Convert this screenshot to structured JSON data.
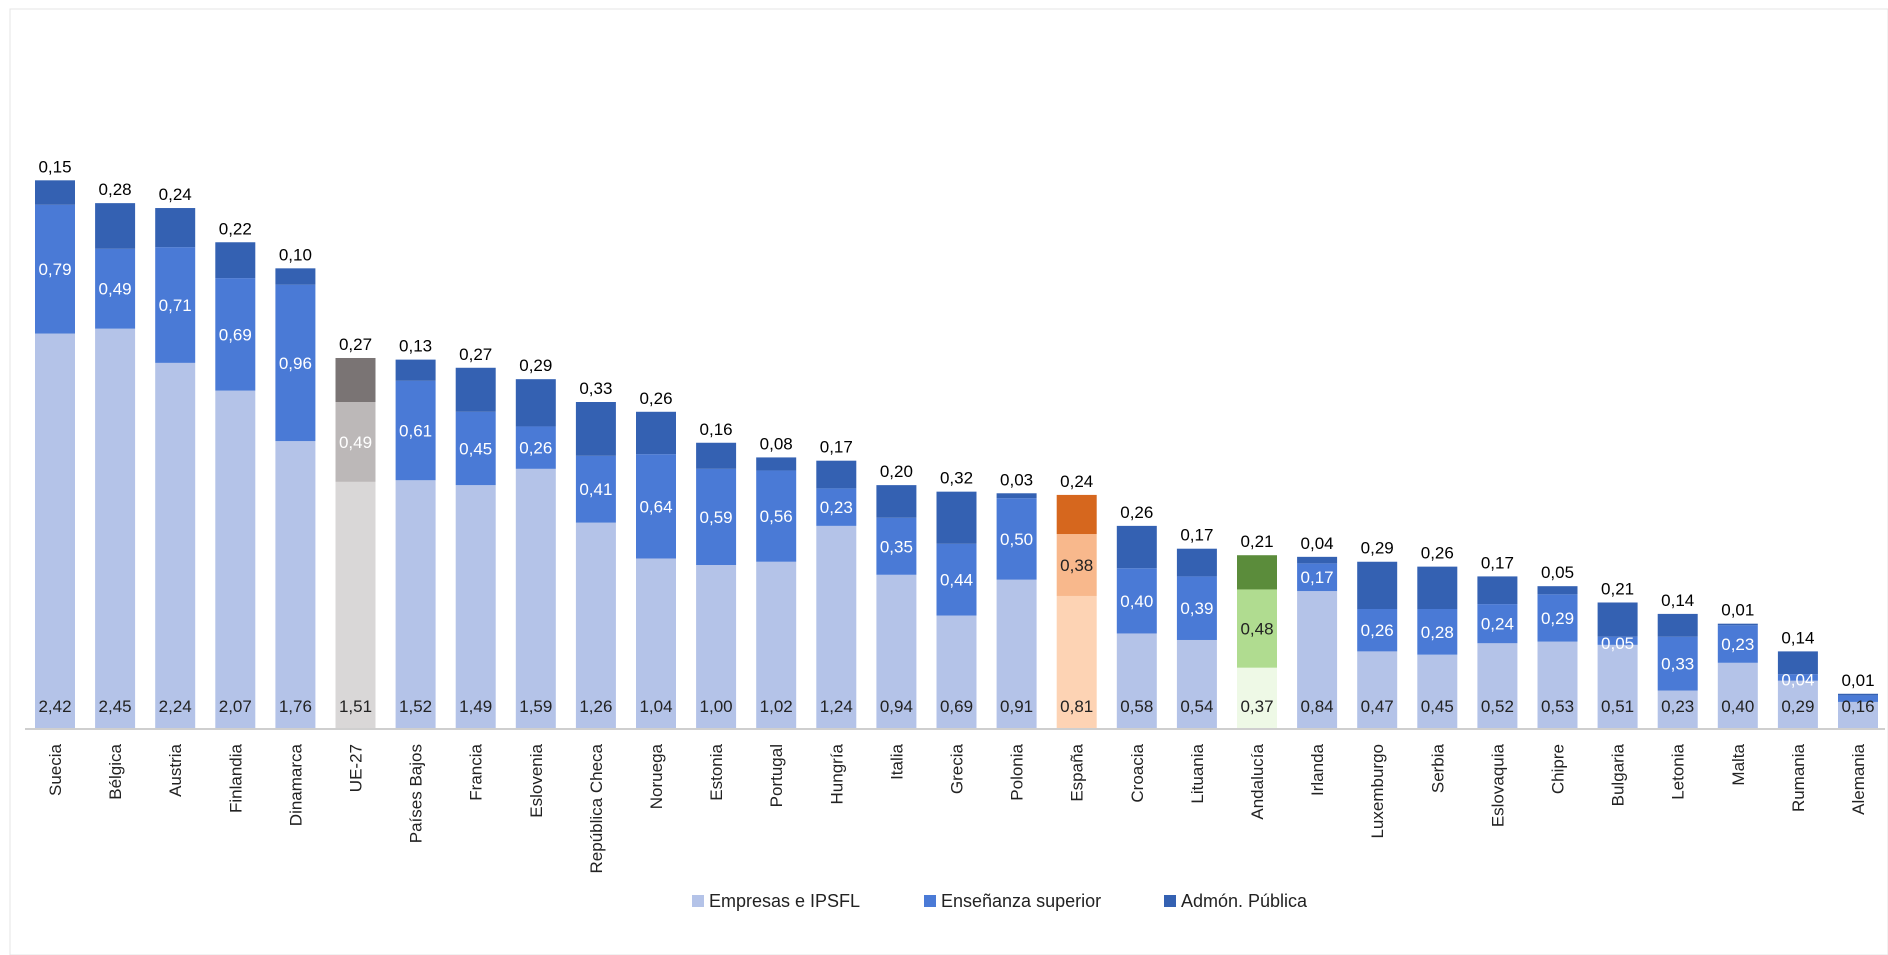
{
  "chart_data": {
    "type": "bar",
    "stacked": true,
    "categories": [
      "Suecia",
      "Bélgica",
      "Austria",
      "Finlandia",
      "Dinamarca",
      "UE-27",
      "Países Bajos",
      "Francia",
      "Eslovenia",
      "República Checa",
      "Noruega",
      "Estonia",
      "Portugal",
      "Hungría",
      "Italia",
      "Grecia",
      "Polonia",
      "España",
      "Croacia",
      "Lituania",
      "Andalucía",
      "Irlanda",
      "Luxemburgo",
      "Serbia",
      "Eslovaquia",
      "Chipre",
      "Bulgaria",
      "Letonia",
      "Malta",
      "Rumania",
      "Alemania"
    ],
    "series": [
      {
        "name": "Empresas e IPSFL",
        "color": "#b4c3e8",
        "values": [
          2.42,
          2.45,
          2.24,
          2.07,
          1.76,
          1.51,
          1.52,
          1.49,
          1.59,
          1.26,
          1.04,
          1.0,
          1.02,
          1.24,
          0.94,
          0.69,
          0.91,
          0.81,
          0.58,
          0.54,
          0.37,
          0.84,
          0.47,
          0.45,
          0.52,
          0.53,
          0.51,
          0.23,
          0.4,
          0.29,
          0.16
        ]
      },
      {
        "name": "Enseñanza superior",
        "color": "#4a7ad6",
        "values": [
          0.79,
          0.49,
          0.71,
          0.69,
          0.96,
          0.49,
          0.61,
          0.45,
          0.26,
          0.41,
          0.64,
          0.59,
          0.56,
          0.23,
          0.35,
          0.44,
          0.5,
          0.38,
          0.4,
          0.39,
          0.48,
          0.17,
          0.26,
          0.28,
          0.24,
          0.29,
          0.05,
          0.33,
          0.23,
          0.04,
          0.04
        ]
      },
      {
        "name": "Admón. Pública",
        "color": "#3461b2",
        "values": [
          0.15,
          0.28,
          0.24,
          0.22,
          0.1,
          0.27,
          0.13,
          0.27,
          0.29,
          0.33,
          0.26,
          0.16,
          0.08,
          0.17,
          0.2,
          0.32,
          0.03,
          0.24,
          0.26,
          0.17,
          0.21,
          0.04,
          0.29,
          0.26,
          0.17,
          0.05,
          0.21,
          0.14,
          0.01,
          0.14,
          0.01
        ]
      }
    ],
    "value_labels": {
      "Empresas e IPSFL": [
        "2,42",
        "2,45",
        "2,24",
        "2,07",
        "1,76",
        "1,51",
        "1,52",
        "1,49",
        "1,59",
        "1,26",
        "1,04",
        "1,00",
        "1,02",
        "1,24",
        "0,94",
        "0,69",
        "0,91",
        "0,81",
        "0,58",
        "0,54",
        "0,37",
        "0,84",
        "0,47",
        "0,45",
        "0,52",
        "0,53",
        "0,51",
        "0,23",
        "0,40",
        "0,29",
        "0,16"
      ],
      "Enseñanza superior": [
        "0,79",
        "0,49",
        "0,71",
        "0,69",
        "0,96",
        "0,49",
        "0,61",
        "0,45",
        "0,26",
        "0,41",
        "0,64",
        "0,59",
        "0,56",
        "0,23",
        "0,35",
        "0,44",
        "0,50",
        "0,38",
        "0,40",
        "0,39",
        "0,48",
        "0,17",
        "0,26",
        "0,28",
        "0,24",
        "0,29",
        "0,05",
        "0,33",
        "0,23",
        "0,04",
        ""
      ],
      "Admón. Pública": [
        "0,15",
        "0,28",
        "0,24",
        "0,22",
        "0,10",
        "0,27",
        "0,13",
        "0,27",
        "0,29",
        "0,33",
        "0,26",
        "0,16",
        "0,08",
        "0,17",
        "0,20",
        "0,32",
        "0,03",
        "0,24",
        "0,26",
        "0,17",
        "0,21",
        "0,04",
        "0,29",
        "0,26",
        "0,17",
        "0,05",
        "0,21",
        "0,14",
        "0,01",
        "0,14",
        "0,01"
      ]
    },
    "highlight": {
      "UE-27": [
        "#d9d7d7",
        "#bcb8b8",
        "#7a7474"
      ],
      "España": [
        "#fdd3b4",
        "#f8b88c",
        "#d6671e"
      ],
      "Andalucía": [
        "#eef9e6",
        "#b0dc90",
        "#5b8c3b"
      ]
    },
    "title": "",
    "xlabel": "",
    "ylabel": "",
    "ylim": [
      0,
      3.6
    ],
    "grid": false,
    "legend_position": "bottom"
  }
}
